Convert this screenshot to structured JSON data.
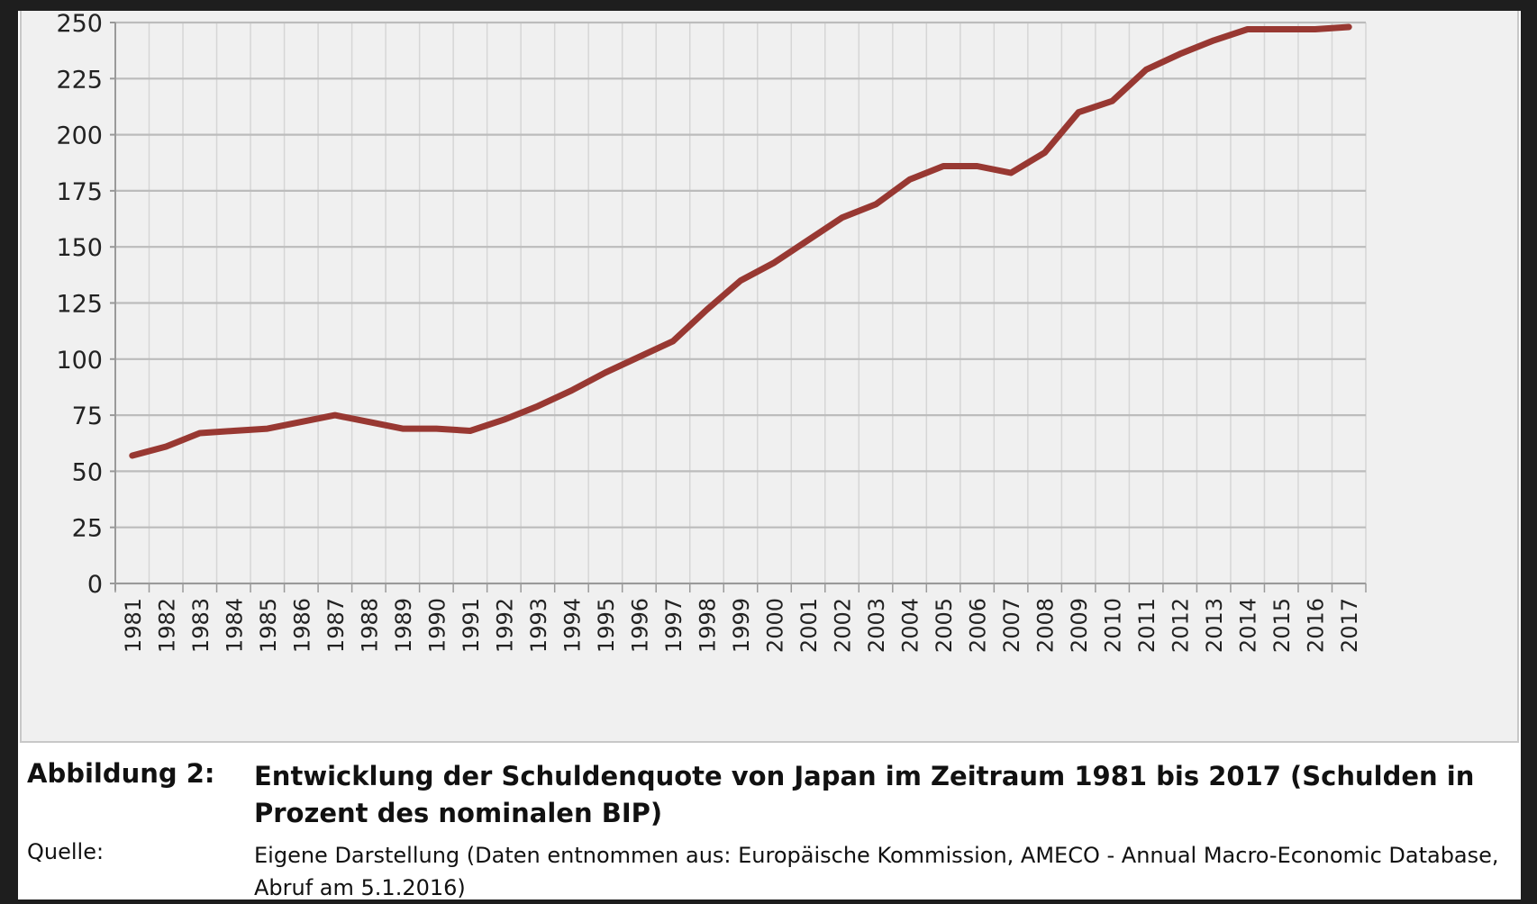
{
  "chart_data": {
    "type": "line",
    "title": "",
    "xlabel": "",
    "ylabel": "",
    "ylim": [
      0,
      250
    ],
    "yticks": [
      0,
      25,
      50,
      75,
      100,
      125,
      150,
      175,
      200,
      225,
      250
    ],
    "x": [
      1981,
      1982,
      1983,
      1984,
      1985,
      1986,
      1987,
      1988,
      1989,
      1990,
      1991,
      1992,
      1993,
      1994,
      1995,
      1996,
      1997,
      1998,
      1999,
      2000,
      2001,
      2002,
      2003,
      2004,
      2005,
      2006,
      2007,
      2008,
      2009,
      2010,
      2011,
      2012,
      2013,
      2014,
      2015,
      2016,
      2017
    ],
    "series": [
      {
        "name": "Schuldenquote Japan",
        "color": "#983832",
        "values": [
          57,
          61,
          67,
          68,
          69,
          72,
          75,
          72,
          69,
          69,
          68,
          73,
          79,
          86,
          94,
          101,
          108,
          122,
          135,
          143,
          153,
          163,
          169,
          180,
          186,
          186,
          183,
          192,
          210,
          215,
          229,
          236,
          242,
          247,
          247,
          247,
          248
        ]
      }
    ],
    "grid": true,
    "grid_color": "#bcbcbc",
    "background": "#f0f0f0"
  },
  "caption": {
    "label": "Abbildung 2:",
    "text": "Entwicklung der Schuldenquote von Japan im Zeitraum 1981 bis 2017 (Schulden in Prozent des nominalen BIP)",
    "source_label": "Quelle:",
    "source_text": "Eigene Darstellung (Daten entnommen aus: Europäische Kommission, AMECO - Annual Macro-Economic Database, Abruf am 5.1.2016)"
  }
}
